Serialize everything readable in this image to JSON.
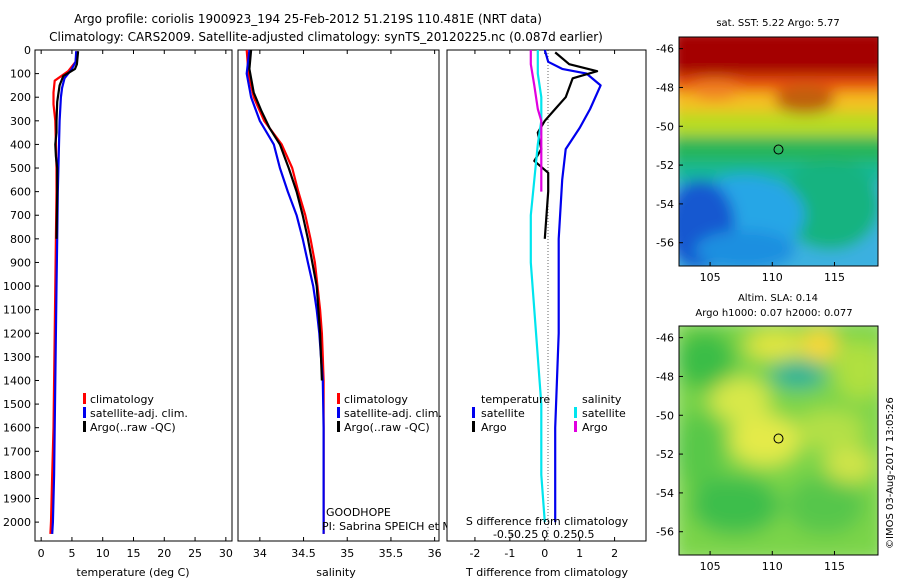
{
  "header": {
    "line1": "Argo profile: coriolis 1900923_194 25-Feb-2012 51.219S 110.481E (NRT data)",
    "line2": "Climatology: CARS2009. Satellite-adjusted climatology: synTS_20120225.nc (0.087d earlier)"
  },
  "credit": "GOODHOPE",
  "pi": "PI: Sabrina SPEICH et Michel ARHAN",
  "watermark": "©IMOS 03-Aug-2017 13:05:26",
  "colors": {
    "clim": "#ff0000",
    "sat": "#0000ee",
    "argo": "#000000",
    "sat_s": "#00e5ee",
    "argo_s": "#e000e0"
  },
  "chart_data": [
    {
      "type": "line",
      "xlabel": "temperature (deg C)",
      "xlim": [
        -1,
        31
      ],
      "ylim": [
        2080,
        0
      ],
      "xticks": [
        "0",
        "5",
        "10",
        "15",
        "20",
        "25",
        "30"
      ],
      "yticks": [
        "0",
        "100",
        "200",
        "300",
        "400",
        "500",
        "600",
        "700",
        "800",
        "900",
        "1000",
        "1100",
        "1200",
        "1300",
        "1400",
        "1500",
        "1600",
        "1700",
        "1800",
        "1900",
        "2000"
      ],
      "legend": [
        "climatology",
        "satellite-adj. clim.",
        "Argo(..raw -QC)"
      ],
      "series": [
        {
          "name": "climatology",
          "color": "#ff0000",
          "points": [
            [
              5.8,
              5
            ],
            [
              5.6,
              50
            ],
            [
              4.4,
              90
            ],
            [
              2.2,
              130
            ],
            [
              2.0,
              180
            ],
            [
              2.0,
              230
            ],
            [
              2.3,
              300
            ],
            [
              2.4,
              400
            ],
            [
              2.5,
              500
            ],
            [
              2.5,
              600
            ],
            [
              2.4,
              800
            ],
            [
              2.3,
              1000
            ],
            [
              2.2,
              1200
            ],
            [
              2.1,
              1400
            ],
            [
              2.0,
              1600
            ],
            [
              1.8,
              1800
            ],
            [
              1.6,
              2000
            ],
            [
              1.5,
              2050
            ]
          ]
        },
        {
          "name": "satellite-adj. clim.",
          "color": "#0000ee",
          "points": [
            [
              5.7,
              5
            ],
            [
              5.6,
              50
            ],
            [
              5.0,
              80
            ],
            [
              3.8,
              120
            ],
            [
              3.4,
              160
            ],
            [
              3.2,
              200
            ],
            [
              3.0,
              300
            ],
            [
              2.9,
              400
            ],
            [
              2.8,
              500
            ],
            [
              2.7,
              600
            ],
            [
              2.6,
              800
            ],
            [
              2.5,
              1000
            ],
            [
              2.4,
              1200
            ],
            [
              2.3,
              1400
            ],
            [
              2.2,
              1600
            ],
            [
              2.1,
              1800
            ],
            [
              1.9,
              2000
            ],
            [
              1.8,
              2050
            ]
          ]
        },
        {
          "name": "Argo(..raw -QC)",
          "color": "#000000",
          "points": [
            [
              6.0,
              5
            ],
            [
              5.8,
              60
            ],
            [
              5.5,
              80
            ],
            [
              3.6,
              110
            ],
            [
              3.0,
              150
            ],
            [
              2.6,
              220
            ],
            [
              2.5,
              300
            ],
            [
              2.5,
              350
            ],
            [
              2.3,
              400
            ],
            [
              2.4,
              450
            ],
            [
              2.6,
              500
            ],
            [
              2.6,
              600
            ],
            [
              2.5,
              800
            ]
          ]
        }
      ]
    },
    {
      "type": "line",
      "xlabel": "salinity",
      "xlim": [
        33.75,
        36.05
      ],
      "ylim": [
        2080,
        0
      ],
      "xticks": [
        "34",
        "34.5",
        "35",
        "35.5",
        "36"
      ],
      "legend": [
        "climatology",
        "satellite-adj. clim.",
        "Argo(..raw -QC)"
      ],
      "series": [
        {
          "name": "climatology",
          "color": "#ff0000",
          "points": [
            [
              33.85,
              0
            ],
            [
              33.87,
              100
            ],
            [
              33.93,
              200
            ],
            [
              34.05,
              300
            ],
            [
              34.25,
              400
            ],
            [
              34.37,
              500
            ],
            [
              34.44,
              600
            ],
            [
              34.52,
              700
            ],
            [
              34.58,
              800
            ],
            [
              34.63,
              900
            ],
            [
              34.66,
              1000
            ],
            [
              34.69,
              1100
            ],
            [
              34.71,
              1200
            ],
            [
              34.72,
              1300
            ],
            [
              34.73,
              1400
            ],
            [
              34.73,
              1600
            ],
            [
              34.73,
              1800
            ],
            [
              34.73,
              2000
            ],
            [
              34.73,
              2050
            ]
          ]
        },
        {
          "name": "satellite-adj. clim.",
          "color": "#0000ee",
          "points": [
            [
              33.88,
              0
            ],
            [
              33.85,
              100
            ],
            [
              33.9,
              200
            ],
            [
              34.0,
              300
            ],
            [
              34.16,
              400
            ],
            [
              34.23,
              500
            ],
            [
              34.32,
              600
            ],
            [
              34.42,
              700
            ],
            [
              34.49,
              800
            ],
            [
              34.55,
              900
            ],
            [
              34.61,
              1000
            ],
            [
              34.65,
              1100
            ],
            [
              34.68,
              1200
            ],
            [
              34.7,
              1300
            ],
            [
              34.72,
              1400
            ],
            [
              34.73,
              1600
            ],
            [
              34.73,
              1800
            ],
            [
              34.73,
              2000
            ],
            [
              34.73,
              2050
            ]
          ]
        },
        {
          "name": "Argo(..raw -QC)",
          "color": "#000000",
          "points": [
            [
              33.9,
              0
            ],
            [
              33.88,
              80
            ],
            [
              33.93,
              180
            ],
            [
              34.02,
              260
            ],
            [
              34.11,
              330
            ],
            [
              34.23,
              400
            ],
            [
              34.28,
              450
            ],
            [
              34.33,
              500
            ],
            [
              34.42,
              600
            ],
            [
              34.49,
              700
            ],
            [
              34.55,
              800
            ],
            [
              34.6,
              900
            ],
            [
              34.65,
              1000
            ],
            [
              34.67,
              1100
            ],
            [
              34.69,
              1200
            ],
            [
              34.7,
              1300
            ],
            [
              34.71,
              1400
            ]
          ]
        }
      ]
    },
    {
      "type": "line",
      "xlabel": "T difference from climatology",
      "xlabel_top": "S difference from climatology",
      "xlim": [
        -2.8,
        2.9
      ],
      "ylim": [
        2080,
        0
      ],
      "xticks": [
        "-2",
        "-1",
        "0",
        "1",
        "2"
      ],
      "xticks_s": [
        "-0.5",
        "-0.25",
        "0",
        "0.25",
        "0.5"
      ],
      "legend_title_t": "temperature",
      "legend_title_s": "salinity",
      "legend_t": [
        "satellite",
        "Argo"
      ],
      "legend_s": [
        "satellite",
        "Argo"
      ],
      "series": [
        {
          "name": "satellite",
          "color": "#0000ee",
          "points": [
            [
              0.0,
              0
            ],
            [
              0.1,
              50
            ],
            [
              0.5,
              80
            ],
            [
              1.2,
              100
            ],
            [
              1.6,
              150
            ],
            [
              1.3,
              250
            ],
            [
              1.0,
              330
            ],
            [
              0.6,
              420
            ],
            [
              0.5,
              550
            ],
            [
              0.4,
              800
            ],
            [
              0.4,
              1200
            ],
            [
              0.3,
              1600
            ],
            [
              0.3,
              2000
            ]
          ]
        },
        {
          "name": "Argo",
          "color": "#000000",
          "points": [
            [
              0.3,
              10
            ],
            [
              0.7,
              60
            ],
            [
              1.5,
              90
            ],
            [
              0.8,
              120
            ],
            [
              0.6,
              200
            ],
            [
              0.3,
              250
            ],
            [
              0.0,
              300
            ],
            [
              -0.2,
              350
            ],
            [
              -0.1,
              420
            ],
            [
              -0.3,
              470
            ],
            [
              0.1,
              520
            ],
            [
              0.1,
              600
            ],
            [
              0.0,
              800
            ]
          ]
        },
        {
          "name": "satellite",
          "color": "#00e5ee",
          "points": [
            [
              -0.2,
              0
            ],
            [
              -0.2,
              100
            ],
            [
              -0.1,
              200
            ],
            [
              -0.1,
              300
            ],
            [
              -0.2,
              400
            ],
            [
              -0.3,
              550
            ],
            [
              -0.4,
              700
            ],
            [
              -0.4,
              900
            ],
            [
              -0.3,
              1100
            ],
            [
              -0.2,
              1300
            ],
            [
              -0.1,
              1500
            ],
            [
              -0.1,
              1800
            ],
            [
              0.0,
              2000
            ]
          ]
        },
        {
          "name": "Argo",
          "color": "#e000e0",
          "points": [
            [
              -0.4,
              0
            ],
            [
              -0.4,
              60
            ],
            [
              -0.3,
              150
            ],
            [
              -0.2,
              250
            ],
            [
              -0.1,
              300
            ],
            [
              -0.1,
              400
            ],
            [
              -0.1,
              500
            ],
            [
              -0.1,
              600
            ]
          ]
        }
      ]
    },
    {
      "type": "heatmap",
      "title": "sat. SST: 5.22  Argo: 5.77",
      "xticks": [
        "105",
        "110",
        "115"
      ],
      "yticks": [
        "-46",
        "-48",
        "-50",
        "-52",
        "-54",
        "-56"
      ],
      "xlim": [
        102.5,
        118.5
      ],
      "ylim": [
        -57.2,
        -45.4
      ],
      "marker": [
        110.5,
        -51.2
      ]
    },
    {
      "type": "heatmap",
      "title": "Altim. SLA: 0.14",
      "subtitle": "Argo h1000: 0.07 h2000: 0.077",
      "xticks": [
        "105",
        "110",
        "115"
      ],
      "yticks": [
        "-46",
        "-48",
        "-50",
        "-52",
        "-54",
        "-56"
      ],
      "xlim": [
        102.5,
        118.5
      ],
      "ylim": [
        -57.2,
        -45.4
      ],
      "marker": [
        110.5,
        -51.2
      ]
    }
  ]
}
